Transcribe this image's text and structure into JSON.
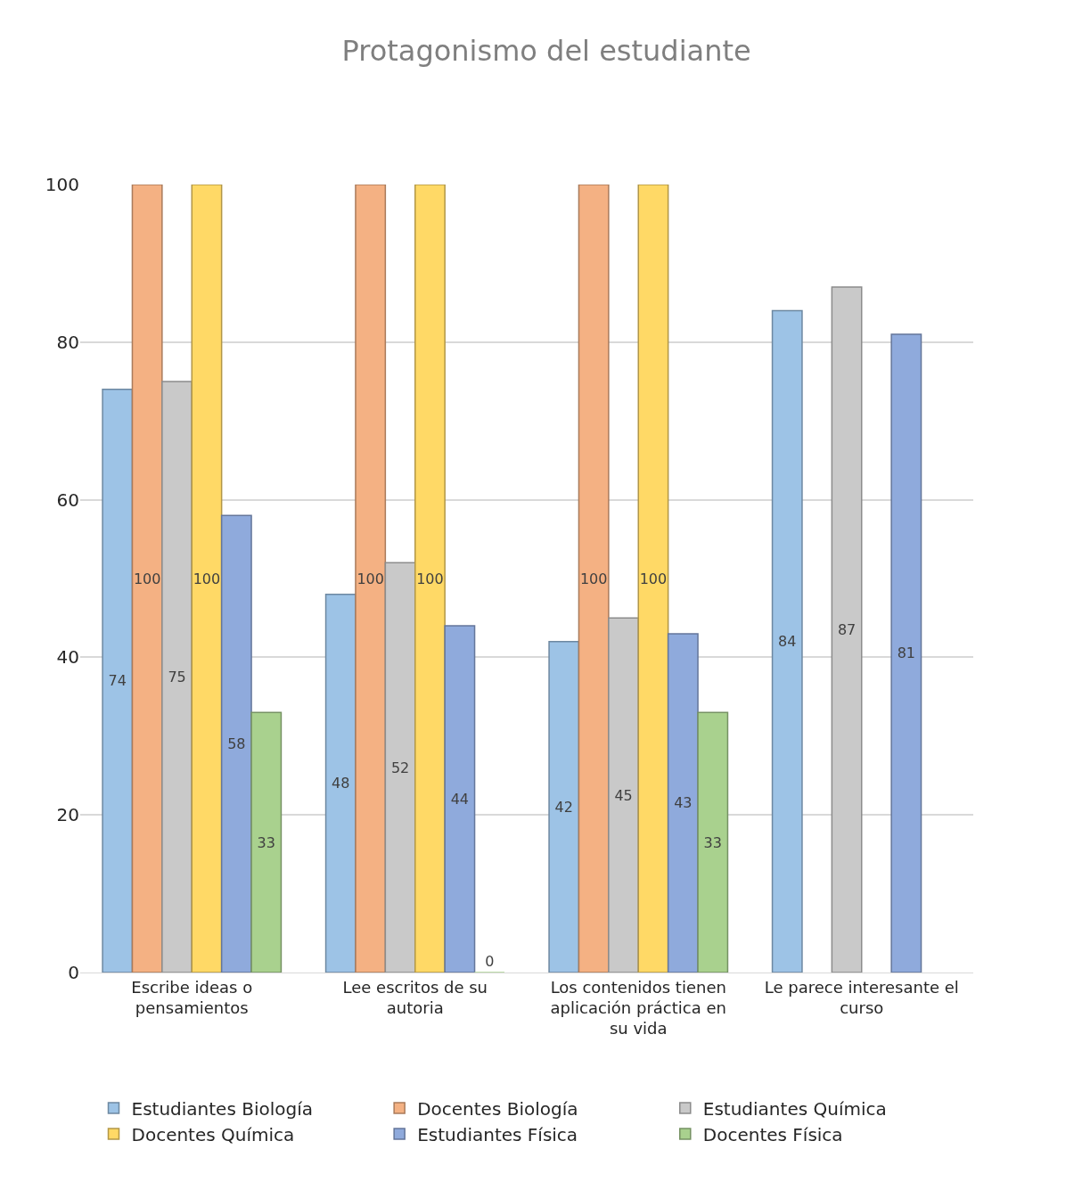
{
  "chart_data": {
    "type": "bar",
    "title": "Protagonismo del estudiante",
    "categories": [
      "Escribe ideas o pensamientos",
      "Lee escritos de su autoria",
      "Los contenidos tienen aplicación práctica en su vida",
      "Le parece interesante el curso"
    ],
    "series": [
      {
        "name": "Estudiantes Biología",
        "color": "#9dc3e6",
        "values": [
          74,
          48,
          42,
          84
        ]
      },
      {
        "name": "Docentes Biología",
        "color": "#f4b183",
        "values": [
          100,
          100,
          100,
          null
        ]
      },
      {
        "name": "Estudiantes Química",
        "color": "#c9c9c9",
        "values": [
          75,
          52,
          45,
          87
        ]
      },
      {
        "name": "Docentes Química",
        "color": "#ffd966",
        "values": [
          100,
          100,
          100,
          null
        ]
      },
      {
        "name": "Estudiantes Física",
        "color": "#8faadc",
        "values": [
          58,
          44,
          43,
          81
        ]
      },
      {
        "name": "Docentes Física",
        "color": "#a9d18e",
        "values": [
          33,
          0,
          33,
          null
        ]
      }
    ],
    "ylim": [
      0,
      100
    ],
    "yticks": [
      0,
      20,
      40,
      60,
      80,
      100
    ],
    "grid": "y",
    "legend": "bottom",
    "data_labels": true
  }
}
